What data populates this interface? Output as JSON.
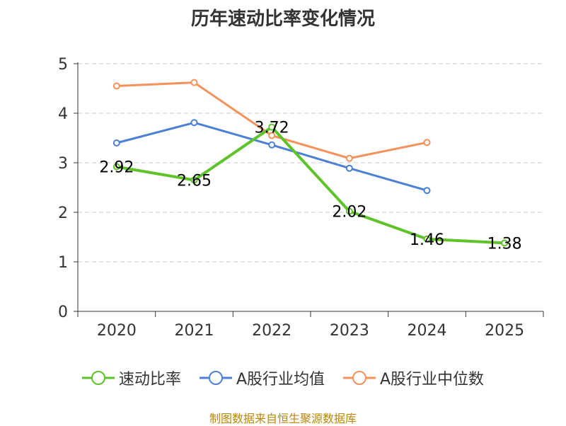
{
  "title": "历年速动比率变化情况",
  "source": "制图数据来自恒生聚源数据库",
  "chart_data": {
    "type": "line",
    "title": "历年速动比率变化情况",
    "categories": [
      "2020",
      "2021",
      "2022",
      "2023",
      "2024",
      "2025"
    ],
    "y_ticks": [
      "0",
      "1",
      "2",
      "3",
      "4",
      "5"
    ],
    "ylim": [
      0,
      5
    ],
    "grid": true,
    "legend_position": "bottom",
    "series": [
      {
        "name": "速动比率",
        "color": "#5ec229",
        "values": [
          2.92,
          2.65,
          3.72,
          2.02,
          1.46,
          1.38
        ],
        "labels": [
          "2.92",
          "2.65",
          "3.72",
          "2.02",
          "1.46",
          "1.38"
        ]
      },
      {
        "name": "A股行业均值",
        "color": "#4d7fd6",
        "values": [
          3.4,
          3.81,
          3.36,
          2.89,
          2.44,
          null
        ]
      },
      {
        "name": "A股行业中位数",
        "color": "#f5915a",
        "values": [
          4.55,
          4.62,
          3.55,
          3.09,
          3.41,
          null
        ]
      }
    ]
  }
}
